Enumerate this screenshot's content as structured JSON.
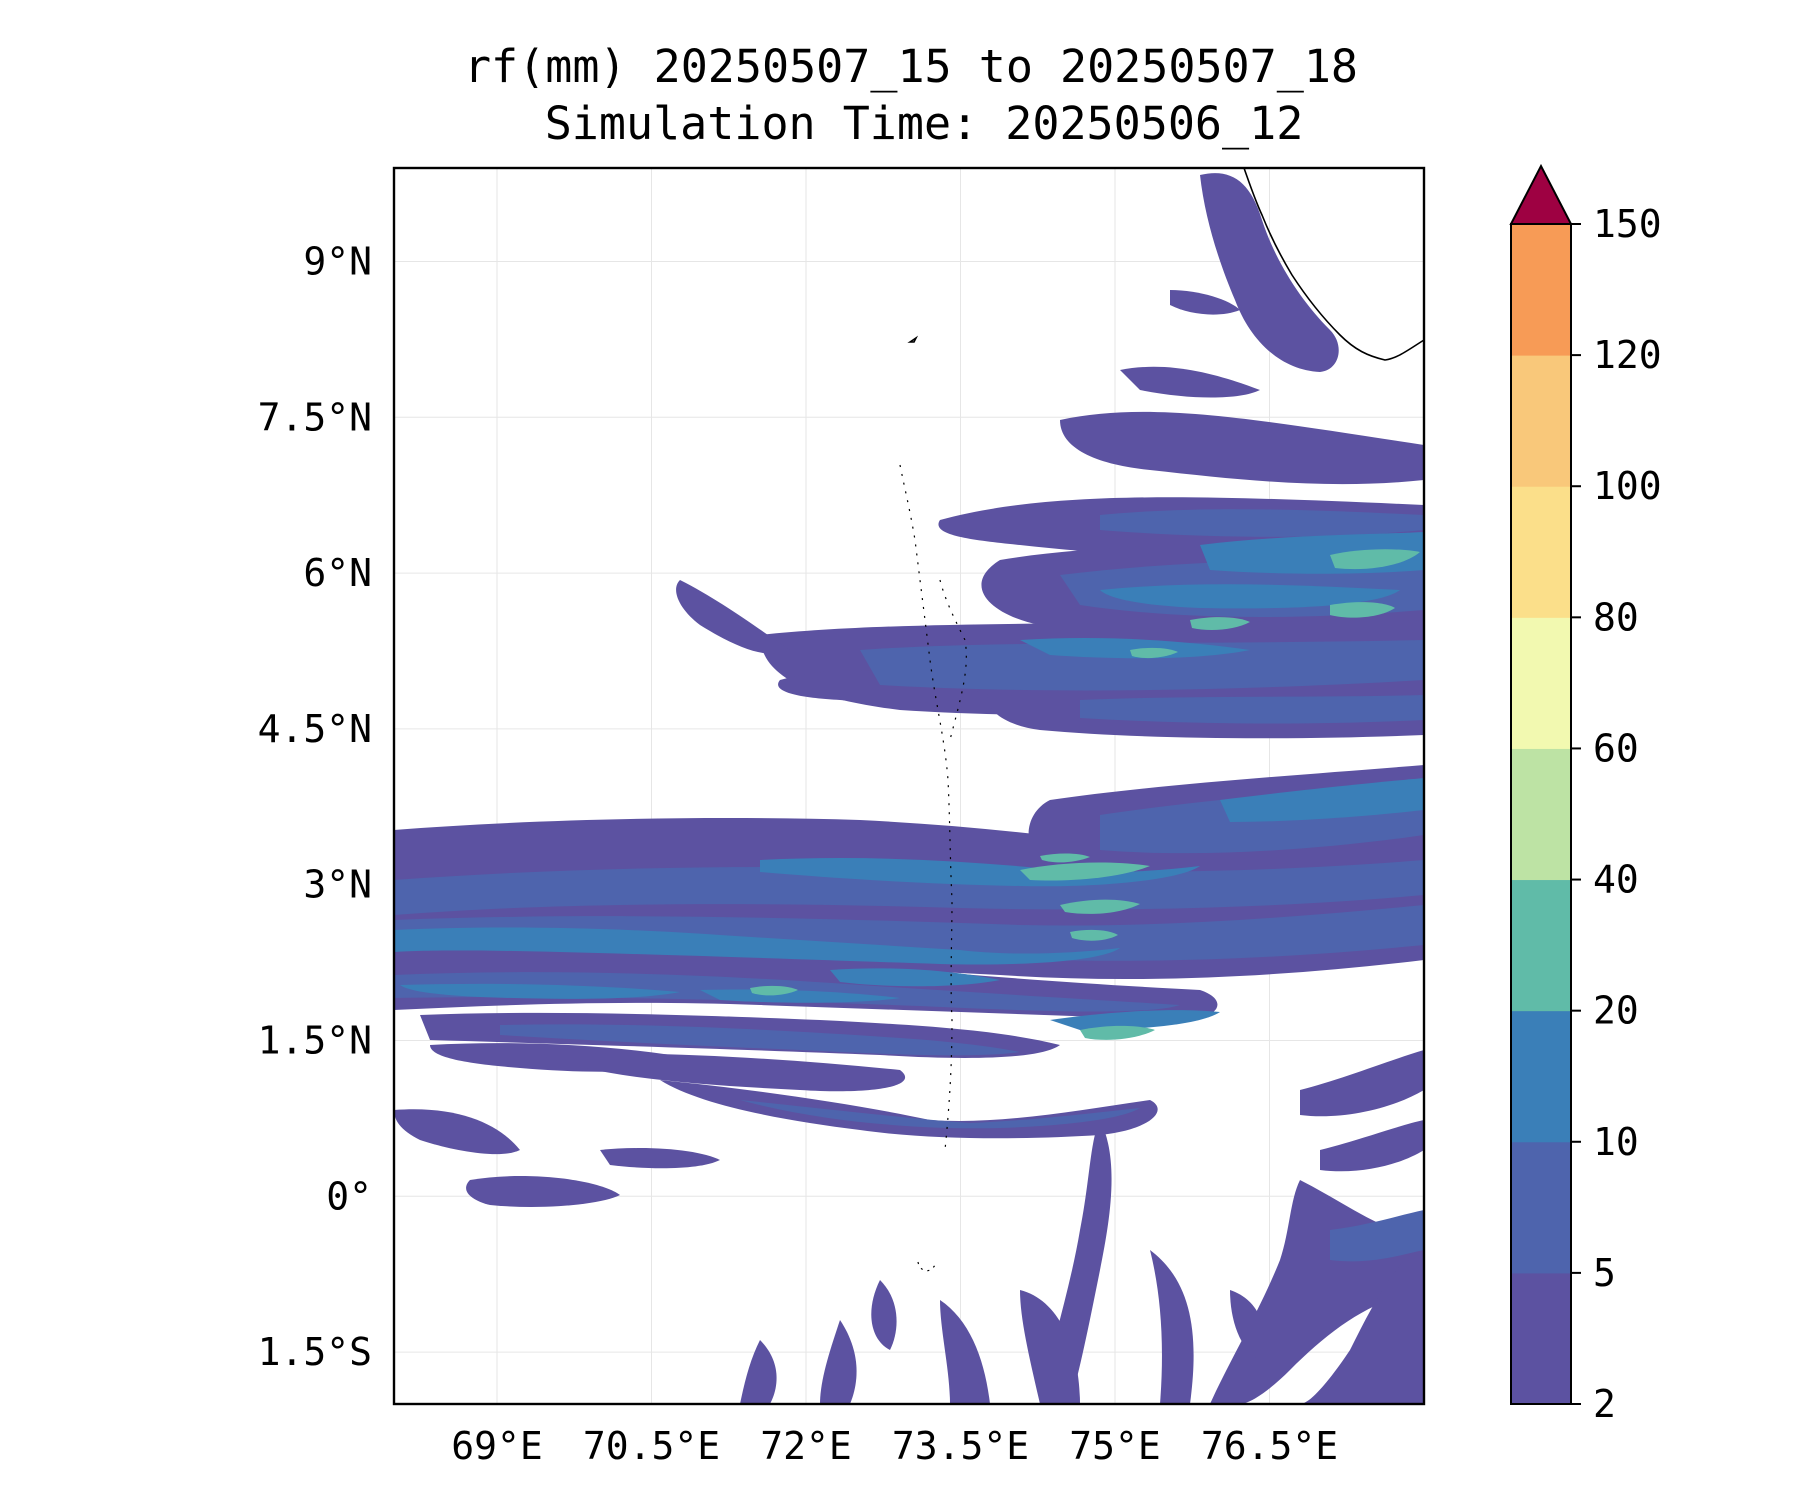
{
  "title_line1": "rf(mm) 20250507_15 to 20250507_18",
  "title_line2": "Simulation Time: 20250506_12",
  "map": {
    "lon_range": [
      68.0,
      78.0
    ],
    "lat_range": [
      -2.0,
      9.9
    ],
    "x_ticks": [
      {
        "value": 69.0,
        "label": "69°E"
      },
      {
        "value": 70.5,
        "label": "70.5°E"
      },
      {
        "value": 72.0,
        "label": "72°E"
      },
      {
        "value": 73.5,
        "label": "73.5°E"
      },
      {
        "value": 75.0,
        "label": "75°E"
      },
      {
        "value": 76.5,
        "label": "76.5°E"
      }
    ],
    "y_ticks": [
      {
        "value": 9.0,
        "label": "9°N"
      },
      {
        "value": 7.5,
        "label": "7.5°N"
      },
      {
        "value": 6.0,
        "label": "6°N"
      },
      {
        "value": 4.5,
        "label": "4.5°N"
      },
      {
        "value": 3.0,
        "label": "3°N"
      },
      {
        "value": 1.5,
        "label": "1.5°N"
      },
      {
        "value": 0.0,
        "label": "0°"
      },
      {
        "value": -1.5,
        "label": "1.5°S"
      }
    ],
    "grid": true
  },
  "colorbar": {
    "levels": [
      "2",
      "5",
      "10",
      "20",
      "40",
      "60",
      "80",
      "100",
      "120",
      "150"
    ],
    "colors": [
      "#5c52a1",
      "#4e64ad",
      "#3a7fb8",
      "#60bba8",
      "#bde3a4",
      "#f2f9b0",
      "#fbdf8a",
      "#f9c87a",
      "#f79b56",
      "#d63a4e"
    ],
    "extend_color": "#9e0142",
    "extend": "max"
  },
  "field_colors": {
    "lvl1": "#5c52a1",
    "lvl2": "#4e64ad",
    "lvl3": "#3a7fb8",
    "lvl4": "#60bba8"
  }
}
